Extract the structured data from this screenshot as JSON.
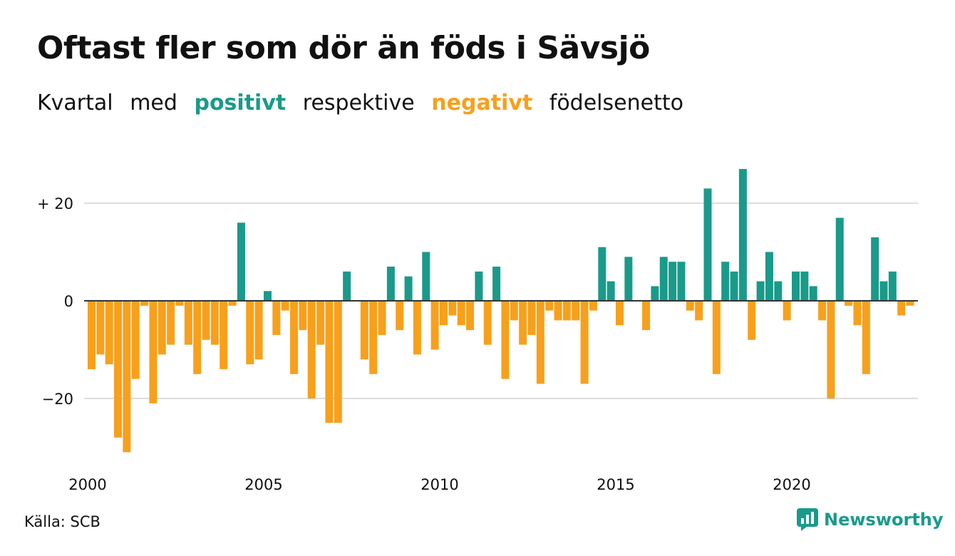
{
  "header": {
    "title": "Oftast fler som dör än föds i Sävsjö",
    "subtitle": {
      "part1": "Kvartal",
      "part2": "med",
      "positive": "positivt",
      "part3": "respektive",
      "negative": "negativt",
      "part4": "födelsenetto"
    }
  },
  "footer": {
    "source": "Källa: SCB",
    "brand": "Newsworthy"
  },
  "colors": {
    "positive": "#1a9a8a",
    "negative": "#f7a01c",
    "grid": "#dddddd",
    "zero_line": "#333333"
  },
  "chart_data": {
    "type": "bar",
    "title": "Oftast fler som dör än föds i Sävsjö",
    "x_start": "2000 Q1",
    "x_ticks": [
      "2000",
      "2005",
      "2010",
      "2015",
      "2020"
    ],
    "y_ticks": [
      {
        "value": 20,
        "label": "+ 20"
      },
      {
        "value": 0,
        "label": "0"
      },
      {
        "value": -20,
        "label": "−20"
      }
    ],
    "ylim": [
      -33,
      29
    ],
    "grid": true,
    "values": [
      -14,
      -11,
      -13,
      -28,
      -31,
      -16,
      -1,
      -21,
      -11,
      -9,
      -1,
      -9,
      -15,
      -8,
      -9,
      -14,
      -1,
      16,
      -13,
      -12,
      2,
      -7,
      -2,
      -15,
      -6,
      -20,
      -9,
      -25,
      -25,
      6,
      0,
      -12,
      -15,
      -7,
      7,
      -6,
      5,
      -11,
      10,
      -10,
      -5,
      -3,
      -5,
      -6,
      6,
      -9,
      7,
      -16,
      -4,
      -9,
      -7,
      -17,
      -2,
      -4,
      -4,
      -4,
      -17,
      -2,
      11,
      4,
      -5,
      9,
      0,
      -6,
      3,
      9,
      8,
      8,
      -2,
      -4,
      23,
      -15,
      8,
      6,
      27,
      -8,
      4,
      10,
      4,
      -4,
      6,
      6,
      3,
      -4,
      -20,
      17,
      -1,
      -5,
      -15,
      13,
      4,
      6,
      -3,
      -1
    ]
  }
}
